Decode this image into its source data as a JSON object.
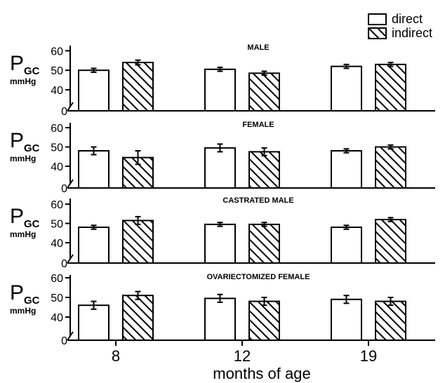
{
  "chart_data": {
    "type": "bar",
    "xlabel": "months of age",
    "ylabel": {
      "main": "P",
      "sub": "GC",
      "unit": "mmHg"
    },
    "categories": [
      "8",
      "12",
      "19"
    ],
    "legend": {
      "position": "top-right",
      "entries": [
        {
          "name": "direct",
          "pattern": "open"
        },
        {
          "name": "indirect",
          "pattern": "hatched"
        }
      ]
    },
    "ylim": [
      0,
      65
    ],
    "yticks": [
      "0",
      "40",
      "50",
      "60"
    ],
    "axis_break": true,
    "panels": [
      {
        "title": "MALE",
        "series": [
          {
            "name": "direct",
            "values": [
              50,
              50.5,
              52
            ],
            "errors": [
              1,
              1,
              1
            ]
          },
          {
            "name": "indirect",
            "values": [
              54,
              48.5,
              53
            ],
            "errors": [
              1.2,
              1,
              1
            ]
          }
        ]
      },
      {
        "title": "FEMALE",
        "series": [
          {
            "name": "direct",
            "values": [
              48,
              49.5,
              48
            ],
            "errors": [
              2,
              2,
              1
            ]
          },
          {
            "name": "indirect",
            "values": [
              44.5,
              47.5,
              50
            ],
            "errors": [
              3.5,
              2,
              1
            ]
          }
        ]
      },
      {
        "title": "CASTRATED MALE",
        "series": [
          {
            "name": "direct",
            "values": [
              48,
              49.5,
              48
            ],
            "errors": [
              1,
              1,
              1
            ]
          },
          {
            "name": "indirect",
            "values": [
              51.5,
              49.5,
              52
            ],
            "errors": [
              2,
              1,
              1
            ]
          }
        ]
      },
      {
        "title": "OVARIECTOMIZED FEMALE",
        "series": [
          {
            "name": "direct",
            "values": [
              46,
              49.5,
              49
            ],
            "errors": [
              2,
              2,
              2
            ]
          },
          {
            "name": "indirect",
            "values": [
              51,
              48,
              48
            ],
            "errors": [
              2,
              2,
              2
            ]
          }
        ]
      }
    ]
  }
}
